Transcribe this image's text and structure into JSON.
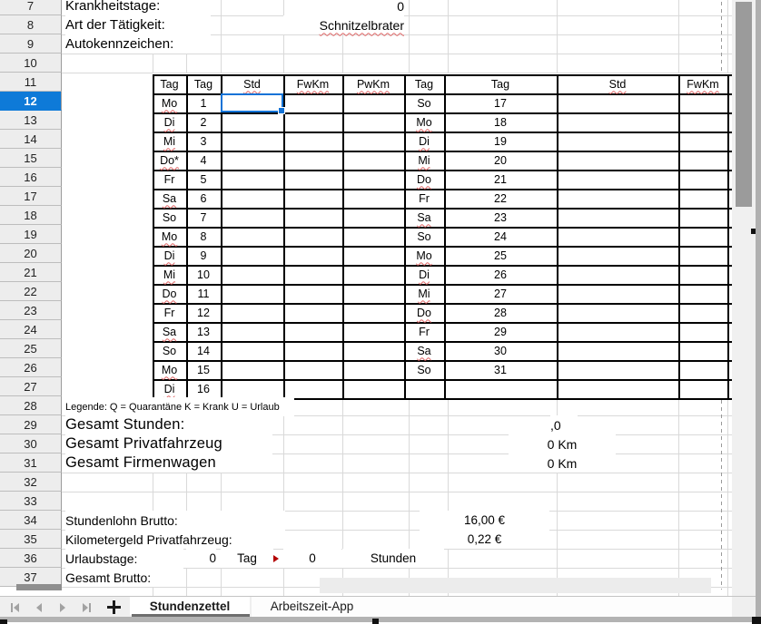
{
  "rows": {
    "start": 7,
    "end": 37,
    "selected": 12
  },
  "info": [
    {
      "row": 7,
      "label": "Krankheitstage:",
      "value": "0",
      "value_misspelled": false
    },
    {
      "row": 8,
      "label": "Art der Tätigkeit:",
      "value": "Schnitzelbrater",
      "value_misspelled": true
    },
    {
      "row": 9,
      "label": "Autokennzeichen:",
      "value": ""
    }
  ],
  "timesheet": {
    "left_headers": [
      "Tag",
      "Tag",
      "Std",
      "FwKm",
      "PwKm"
    ],
    "right_headers": [
      "Tag",
      "Tag",
      "Std",
      "FwKm"
    ],
    "left_days": [
      {
        "day": "Mo",
        "date": "1"
      },
      {
        "day": "Di",
        "date": "2"
      },
      {
        "day": "Mi",
        "date": "3"
      },
      {
        "day": "Do*",
        "date": "4"
      },
      {
        "day": "Fr",
        "date": "5"
      },
      {
        "day": "Sa",
        "date": "6"
      },
      {
        "day": "So",
        "date": "7"
      },
      {
        "day": "Mo",
        "date": "8"
      },
      {
        "day": "Di",
        "date": "9"
      },
      {
        "day": "Mi",
        "date": "10"
      },
      {
        "day": "Do",
        "date": "11"
      },
      {
        "day": "Fr",
        "date": "12"
      },
      {
        "day": "Sa",
        "date": "13"
      },
      {
        "day": "So",
        "date": "14"
      },
      {
        "day": "Mo",
        "date": "15"
      },
      {
        "day": "Di",
        "date": "16"
      }
    ],
    "right_days": [
      {
        "day": "So",
        "date": "17"
      },
      {
        "day": "Mo",
        "date": "18"
      },
      {
        "day": "Di",
        "date": "19"
      },
      {
        "day": "Mi",
        "date": "20"
      },
      {
        "day": "Do",
        "date": "21"
      },
      {
        "day": "Fr",
        "date": "22"
      },
      {
        "day": "Sa",
        "date": "23"
      },
      {
        "day": "So",
        "date": "24"
      },
      {
        "day": "Mo",
        "date": "25"
      },
      {
        "day": "Di",
        "date": "26"
      },
      {
        "day": "Mi",
        "date": "27"
      },
      {
        "day": "Do",
        "date": "28"
      },
      {
        "day": "Fr",
        "date": "29"
      },
      {
        "day": "Sa",
        "date": "30"
      },
      {
        "day": "So",
        "date": "31"
      },
      {
        "day": "",
        "date": ""
      }
    ],
    "misspelled_days": [
      "Mo",
      "Di",
      "Mi",
      "Do",
      "Do*",
      "Sa"
    ],
    "misspelled_headers": [
      "Std",
      "FwKm",
      "PwKm"
    ]
  },
  "legend": "Legende: Q = Quarantäne K = Krank U = Urlaub",
  "totals": [
    {
      "row": 29,
      "label": "Gesamt Stunden:",
      "value": ",0"
    },
    {
      "row": 30,
      "label": "Gesamt Privatfahrzeug",
      "value": "0 Km"
    },
    {
      "row": 31,
      "label": "Gesamt Firmenwagen",
      "value": "0 Km"
    }
  ],
  "rates": [
    {
      "row": 34,
      "label": "Stundenlohn Brutto:",
      "value": "16,00 €"
    },
    {
      "row": 35,
      "label": "Kilometergeld Privatfahrzeug:",
      "value": "0,22 €"
    }
  ],
  "vacation": {
    "row": 36,
    "label": "Urlaubstage:",
    "days": "0",
    "days_unit": "Tag",
    "hours": "0",
    "hours_unit": "Stunden"
  },
  "gross": {
    "row": 37,
    "label": "Gesamt Brutto:"
  },
  "selection": {
    "row": 12,
    "column": "Std"
  },
  "tabs": [
    {
      "label": "Stundenzettel",
      "active": true
    },
    {
      "label": "Arbeitszeit-App",
      "active": false
    }
  ],
  "colors": {
    "selection_blue": "#1272d6",
    "selected_row_header": "#0e7ad8",
    "squiggle_red": "#e06666",
    "tab_underline": "#6e6e6e"
  }
}
